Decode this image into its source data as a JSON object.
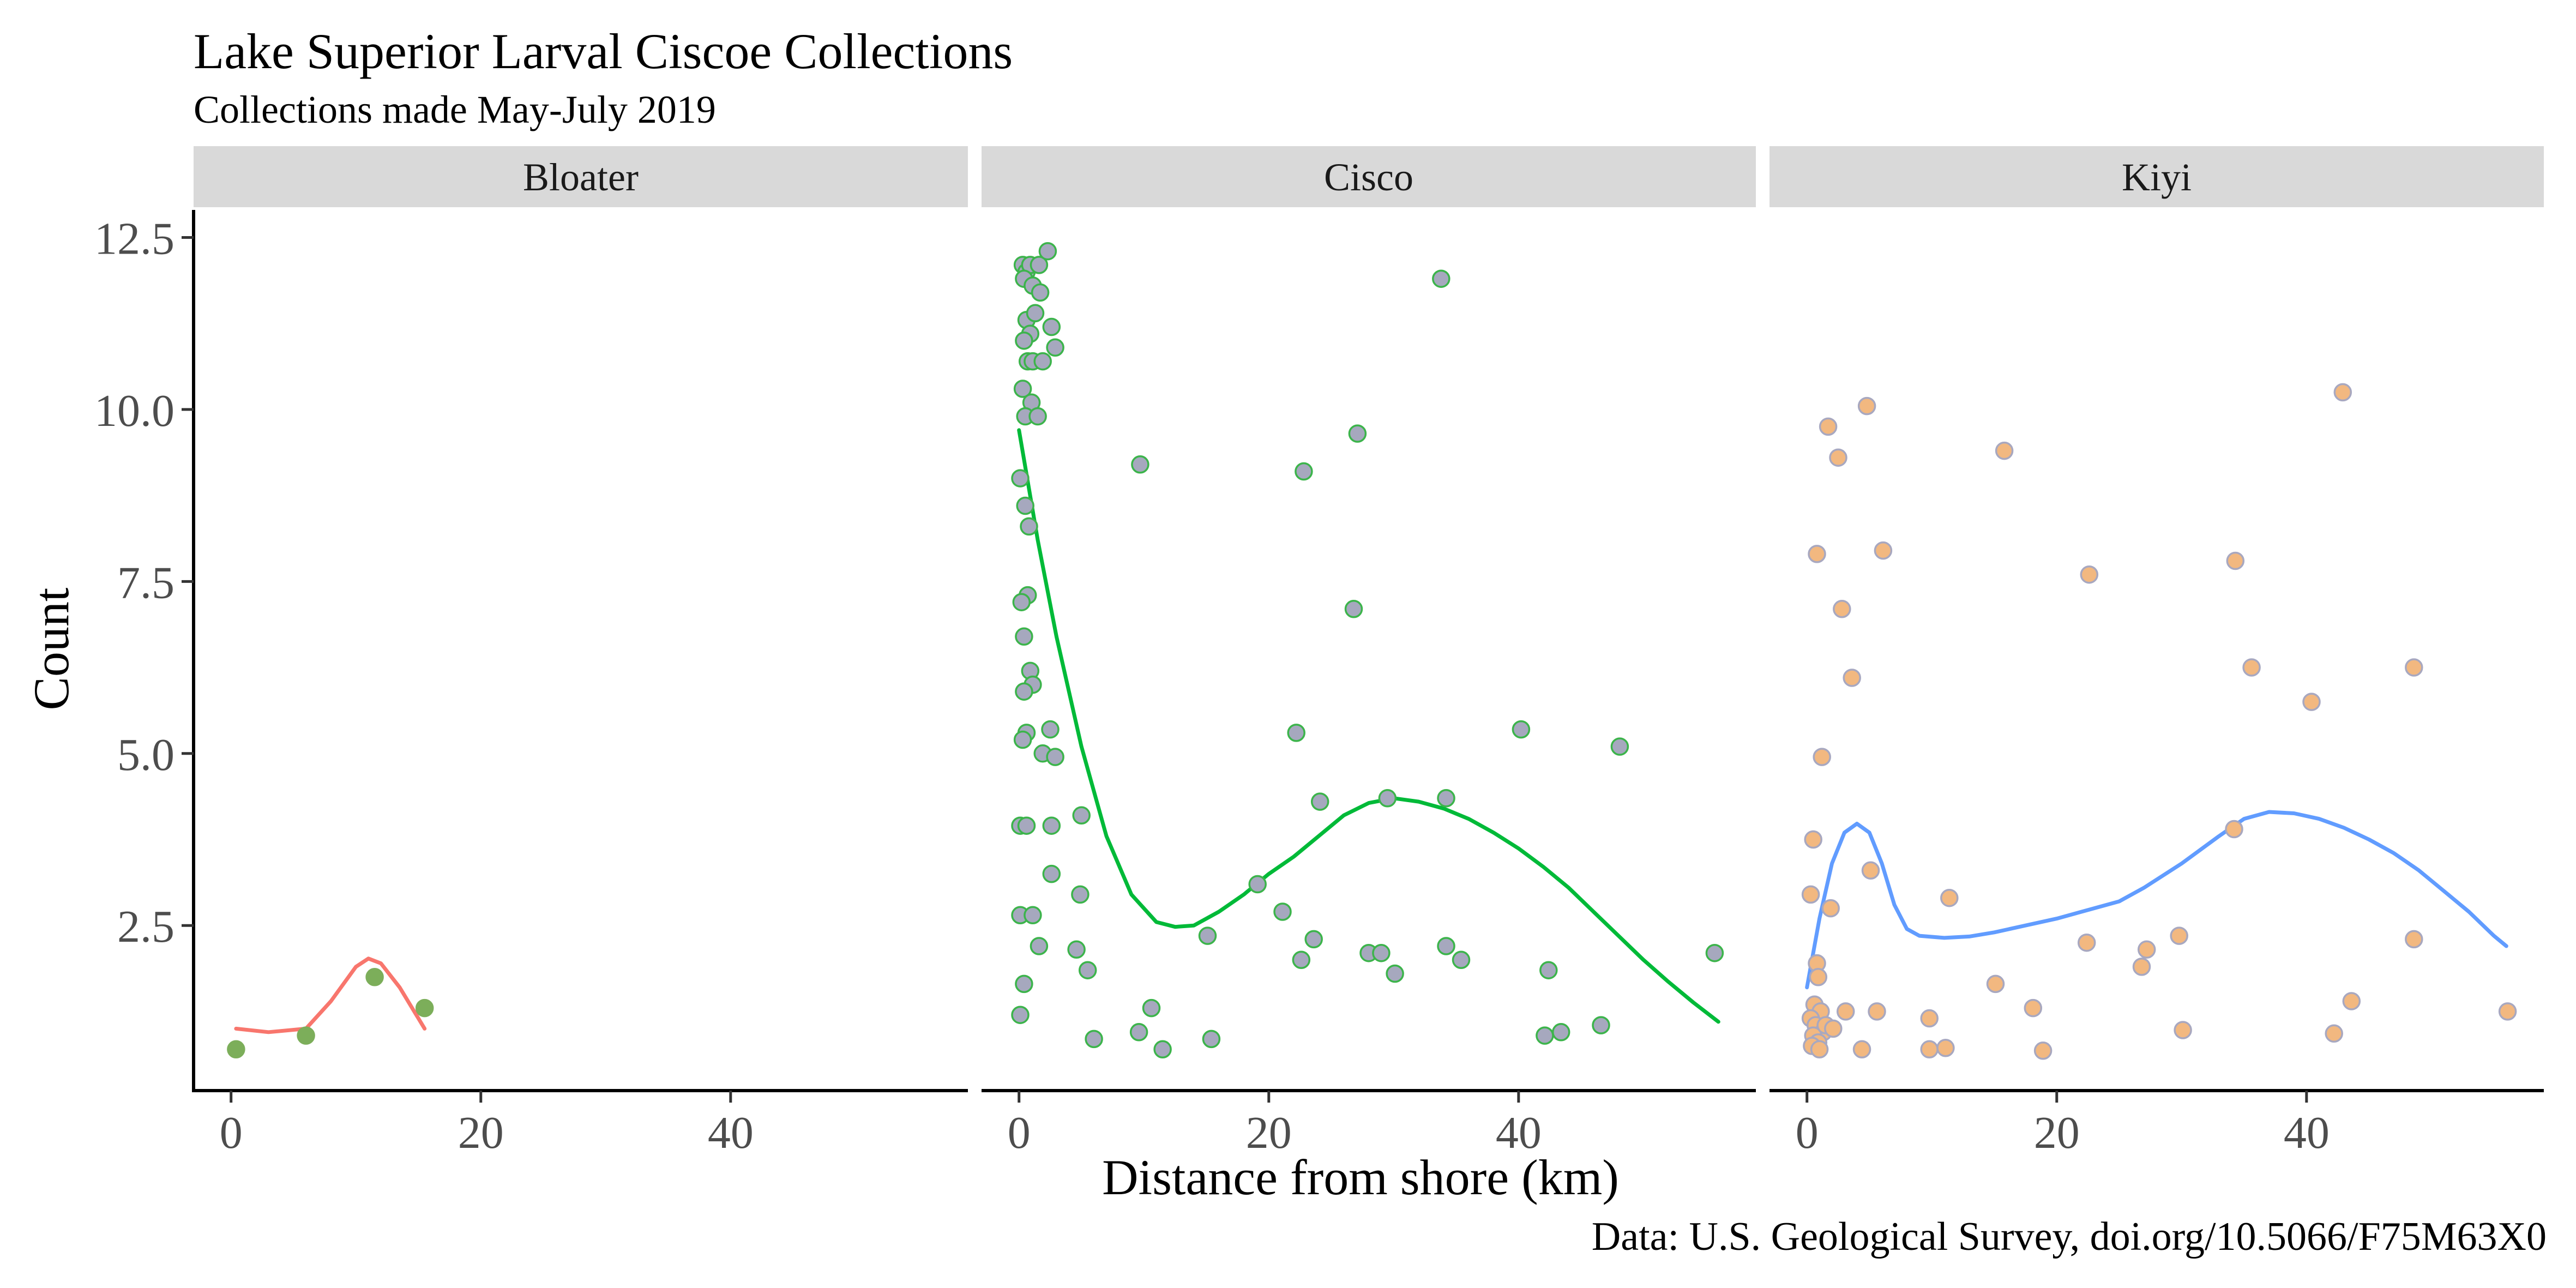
{
  "chart_data": {
    "type": "scatter",
    "title": "Lake Superior Larval Ciscoe Collections",
    "subtitle": "Collections made May-July 2019",
    "xlabel": "Distance from shore (km)",
    "ylabel": "Count",
    "caption": "Data: U.S. Geological Survey, doi.org/10.5066/F75M63X0",
    "xlim": [
      -3,
      59
    ],
    "ylim": [
      0.1,
      12.9
    ],
    "x_ticks": [
      0,
      20,
      40
    ],
    "y_ticks": [
      2.5,
      5.0,
      7.5,
      10.0,
      12.5
    ],
    "x_tick_labels": [
      "0",
      "20",
      "40"
    ],
    "y_tick_labels": [
      "2.5",
      "5.0",
      "7.5",
      "10.0",
      "12.5"
    ],
    "grid": false,
    "legend": "none",
    "panels": [
      {
        "name": "Bloater",
        "point_color": "#7cae5a",
        "point_edge": "#7cae5a",
        "line_color": "#f8766d",
        "points": [
          [
            0.4,
            0.7
          ],
          [
            6,
            0.9
          ],
          [
            11.5,
            1.75
          ],
          [
            15.5,
            1.3
          ]
        ],
        "smooth": [
          [
            0.4,
            1.0
          ],
          [
            3,
            0.95
          ],
          [
            6,
            1.0
          ],
          [
            8,
            1.4
          ],
          [
            10,
            1.9
          ],
          [
            11,
            2.02
          ],
          [
            12,
            1.95
          ],
          [
            13.5,
            1.6
          ],
          [
            15.5,
            1.0
          ]
        ]
      },
      {
        "name": "Cisco",
        "point_color": "#a6a8be",
        "point_edge": "#3cb44b",
        "line_color": "#00ba38",
        "points": [
          [
            0.3,
            12.1
          ],
          [
            0.6,
            12.0
          ],
          [
            0.9,
            12.1
          ],
          [
            1.6,
            12.1
          ],
          [
            2.3,
            12.3
          ],
          [
            0.4,
            11.9
          ],
          [
            1.1,
            11.8
          ],
          [
            1.7,
            11.7
          ],
          [
            0.6,
            11.3
          ],
          [
            1.3,
            11.4
          ],
          [
            0.9,
            11.1
          ],
          [
            2.6,
            11.2
          ],
          [
            0.4,
            11.0
          ],
          [
            0.7,
            10.7
          ],
          [
            1.1,
            10.7
          ],
          [
            1.9,
            10.7
          ],
          [
            2.9,
            10.9
          ],
          [
            0.3,
            10.3
          ],
          [
            1.0,
            10.1
          ],
          [
            0.5,
            9.9
          ],
          [
            1.5,
            9.9
          ],
          [
            0.1,
            9.0
          ],
          [
            0.5,
            8.6
          ],
          [
            0.8,
            8.3
          ],
          [
            0.7,
            7.3
          ],
          [
            0.2,
            7.2
          ],
          [
            0.4,
            6.7
          ],
          [
            0.9,
            6.2
          ],
          [
            1.1,
            6.0
          ],
          [
            0.4,
            5.9
          ],
          [
            0.6,
            5.3
          ],
          [
            0.3,
            5.2
          ],
          [
            2.5,
            5.35
          ],
          [
            1.9,
            5.0
          ],
          [
            2.9,
            4.95
          ],
          [
            0.1,
            3.95
          ],
          [
            0.6,
            3.95
          ],
          [
            2.6,
            3.95
          ],
          [
            5.0,
            4.1
          ],
          [
            2.6,
            3.25
          ],
          [
            4.9,
            2.95
          ],
          [
            0.1,
            2.65
          ],
          [
            1.1,
            2.65
          ],
          [
            1.6,
            2.2
          ],
          [
            4.6,
            2.15
          ],
          [
            5.5,
            1.85
          ],
          [
            0.4,
            1.65
          ],
          [
            0.1,
            1.2
          ],
          [
            6.0,
            0.85
          ],
          [
            9.6,
            0.95
          ],
          [
            10.6,
            1.3
          ],
          [
            11.5,
            0.7
          ],
          [
            15.4,
            0.85
          ],
          [
            9.7,
            9.2
          ],
          [
            22.8,
            9.1
          ],
          [
            27.1,
            9.65
          ],
          [
            26.8,
            7.1
          ],
          [
            22.2,
            5.3
          ],
          [
            33.8,
            11.9
          ],
          [
            40.2,
            5.35
          ],
          [
            48.1,
            5.1
          ],
          [
            24.1,
            4.3
          ],
          [
            29.5,
            4.35
          ],
          [
            34.2,
            4.35
          ],
          [
            19.1,
            3.1
          ],
          [
            21.1,
            2.7
          ],
          [
            15.1,
            2.35
          ],
          [
            23.6,
            2.3
          ],
          [
            22.6,
            2.0
          ],
          [
            28.0,
            2.1
          ],
          [
            29.0,
            2.1
          ],
          [
            30.1,
            1.8
          ],
          [
            34.2,
            2.2
          ],
          [
            35.4,
            2.0
          ],
          [
            42.4,
            1.85
          ],
          [
            55.7,
            2.1
          ],
          [
            42.1,
            0.9
          ],
          [
            43.4,
            0.95
          ],
          [
            46.6,
            1.05
          ]
        ],
        "smooth": [
          [
            0,
            9.7
          ],
          [
            1.5,
            8.1
          ],
          [
            3,
            6.7
          ],
          [
            5,
            5.1
          ],
          [
            7,
            3.8
          ],
          [
            9,
            2.95
          ],
          [
            11,
            2.55
          ],
          [
            12.5,
            2.48
          ],
          [
            14,
            2.5
          ],
          [
            16,
            2.7
          ],
          [
            18,
            2.95
          ],
          [
            20,
            3.25
          ],
          [
            22,
            3.5
          ],
          [
            24,
            3.8
          ],
          [
            26,
            4.1
          ],
          [
            28,
            4.28
          ],
          [
            30,
            4.35
          ],
          [
            32,
            4.3
          ],
          [
            34,
            4.2
          ],
          [
            36,
            4.05
          ],
          [
            38,
            3.85
          ],
          [
            40,
            3.62
          ],
          [
            42,
            3.35
          ],
          [
            44,
            3.05
          ],
          [
            46,
            2.7
          ],
          [
            48,
            2.35
          ],
          [
            50,
            2.0
          ],
          [
            52,
            1.68
          ],
          [
            54,
            1.38
          ],
          [
            56,
            1.1
          ]
        ]
      },
      {
        "name": "Kiyi",
        "point_color": "#f2b880",
        "point_edge": "#a8a8c0",
        "line_color": "#619cff",
        "points": [
          [
            1.7,
            9.75
          ],
          [
            4.8,
            10.05
          ],
          [
            2.5,
            9.3
          ],
          [
            15.8,
            9.4
          ],
          [
            42.9,
            10.25
          ],
          [
            0.8,
            7.9
          ],
          [
            6.1,
            7.95
          ],
          [
            2.8,
            7.1
          ],
          [
            22.6,
            7.6
          ],
          [
            34.3,
            7.8
          ],
          [
            3.6,
            6.1
          ],
          [
            35.6,
            6.25
          ],
          [
            40.4,
            5.75
          ],
          [
            48.6,
            6.25
          ],
          [
            1.2,
            4.95
          ],
          [
            0.5,
            3.75
          ],
          [
            34.2,
            3.9
          ],
          [
            5.1,
            3.3
          ],
          [
            0.3,
            2.95
          ],
          [
            1.9,
            2.75
          ],
          [
            11.4,
            2.9
          ],
          [
            22.4,
            2.25
          ],
          [
            27.2,
            2.15
          ],
          [
            29.8,
            2.35
          ],
          [
            48.6,
            2.3
          ],
          [
            0.8,
            1.95
          ],
          [
            0.9,
            1.75
          ],
          [
            26.8,
            1.9
          ],
          [
            15.1,
            1.65
          ],
          [
            0.6,
            1.35
          ],
          [
            1.1,
            1.25
          ],
          [
            0.3,
            1.15
          ],
          [
            0.7,
            1.05
          ],
          [
            1.3,
            0.95
          ],
          [
            0.5,
            0.9
          ],
          [
            0.9,
            0.8
          ],
          [
            0.4,
            0.75
          ],
          [
            1.0,
            0.7
          ],
          [
            1.5,
            1.05
          ],
          [
            2.1,
            1.0
          ],
          [
            3.1,
            1.25
          ],
          [
            5.6,
            1.25
          ],
          [
            9.8,
            1.15
          ],
          [
            18.1,
            1.3
          ],
          [
            43.6,
            1.4
          ],
          [
            56.1,
            1.25
          ],
          [
            4.4,
            0.7
          ],
          [
            9.8,
            0.7
          ],
          [
            11.1,
            0.72
          ],
          [
            18.9,
            0.68
          ],
          [
            30.1,
            0.98
          ],
          [
            42.2,
            0.93
          ]
        ],
        "smooth": [
          [
            0,
            1.6
          ],
          [
            1,
            2.6
          ],
          [
            2,
            3.4
          ],
          [
            3,
            3.85
          ],
          [
            4,
            3.98
          ],
          [
            5,
            3.85
          ],
          [
            6,
            3.4
          ],
          [
            7,
            2.8
          ],
          [
            8,
            2.45
          ],
          [
            9,
            2.35
          ],
          [
            11,
            2.32
          ],
          [
            13,
            2.34
          ],
          [
            15,
            2.4
          ],
          [
            17,
            2.48
          ],
          [
            20,
            2.6
          ],
          [
            23,
            2.75
          ],
          [
            25,
            2.85
          ],
          [
            27,
            3.05
          ],
          [
            30,
            3.4
          ],
          [
            33,
            3.8
          ],
          [
            35,
            4.05
          ],
          [
            37,
            4.15
          ],
          [
            39,
            4.13
          ],
          [
            41,
            4.05
          ],
          [
            43,
            3.92
          ],
          [
            45,
            3.75
          ],
          [
            47,
            3.55
          ],
          [
            49,
            3.3
          ],
          [
            51,
            3.0
          ],
          [
            53,
            2.7
          ],
          [
            55,
            2.35
          ],
          [
            56,
            2.2
          ]
        ]
      }
    ]
  }
}
